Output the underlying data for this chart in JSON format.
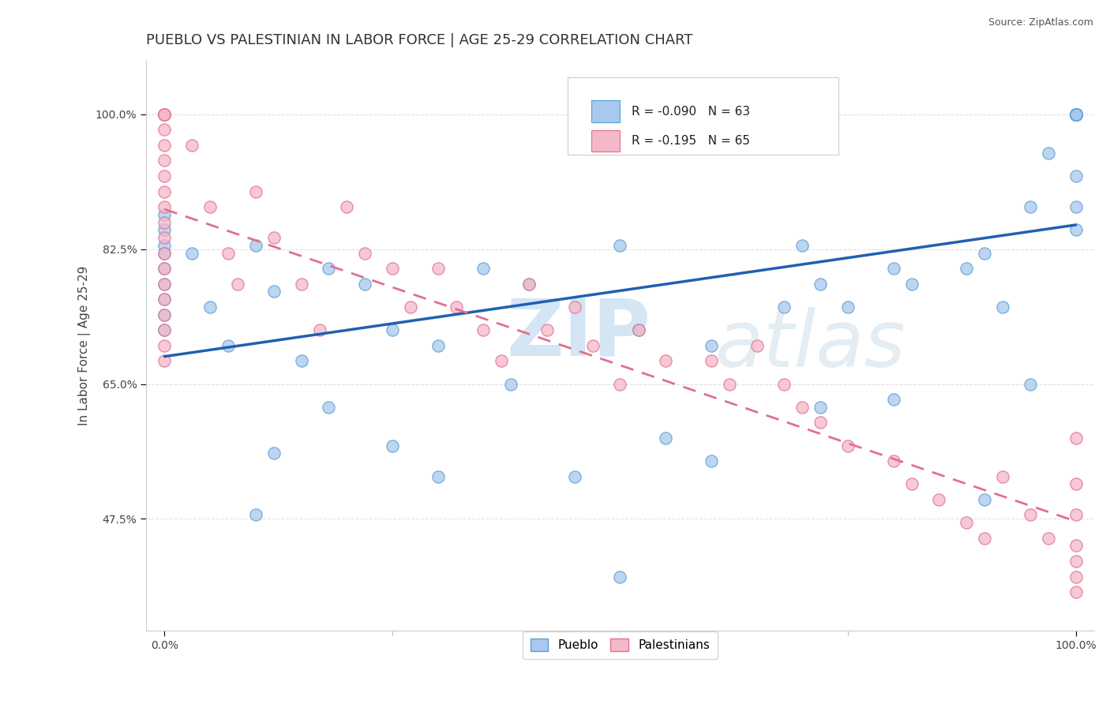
{
  "title": "PUEBLO VS PALESTINIAN IN LABOR FORCE | AGE 25-29 CORRELATION CHART",
  "source": "Source: ZipAtlas.com",
  "ylabel": "In Labor Force | Age 25-29",
  "xlim": [
    -0.02,
    1.02
  ],
  "ylim": [
    0.33,
    1.07
  ],
  "yticks": [
    0.475,
    0.65,
    0.825,
    1.0
  ],
  "ytick_labels": [
    "47.5%",
    "65.0%",
    "82.5%",
    "100.0%"
  ],
  "xtick_labels": [
    "0.0%",
    "100.0%"
  ],
  "xtick_pos": [
    0.0,
    1.0
  ],
  "pueblo_R": -0.09,
  "pueblo_N": 63,
  "palestinians_R": -0.195,
  "palestinians_N": 65,
  "pueblo_color": "#a8c8ee",
  "pueblo_edge_color": "#5a9fd4",
  "palestinians_color": "#f5b8c8",
  "palestinians_edge_color": "#e07090",
  "pueblo_line_color": "#2060b0",
  "palestinians_line_color": "#e07090",
  "background_color": "#ffffff",
  "watermark": "ZIPatlas",
  "watermark_color_zip": "#b0cce8",
  "watermark_color_atlas": "#c8d8e8",
  "legend_label_pueblo": "Pueblo",
  "legend_label_palestinians": "Palestinians",
  "title_fontsize": 13,
  "axis_label_fontsize": 11,
  "tick_fontsize": 10,
  "pueblo_x": [
    0.0,
    0.0,
    0.0,
    0.0,
    0.0,
    0.0,
    0.0,
    0.0,
    0.0,
    0.03,
    0.05,
    0.07,
    0.1,
    0.12,
    0.15,
    0.18,
    0.22,
    0.25,
    0.3,
    0.35,
    0.4,
    0.5,
    0.52,
    0.55,
    0.6,
    0.68,
    0.7,
    0.72,
    0.75,
    0.8,
    0.82,
    0.88,
    0.9,
    0.92,
    0.95,
    0.97,
    1.0,
    1.0,
    1.0,
    1.0,
    1.0,
    1.0,
    1.0,
    1.0,
    1.0,
    1.0,
    1.0,
    1.0,
    1.0,
    1.0,
    0.12,
    0.18,
    0.1,
    0.25,
    0.3,
    0.38,
    0.45,
    0.5,
    0.6,
    0.72,
    0.8,
    0.9,
    0.95
  ],
  "pueblo_y": [
    0.87,
    0.85,
    0.83,
    0.82,
    0.8,
    0.78,
    0.76,
    0.74,
    0.72,
    0.82,
    0.75,
    0.7,
    0.83,
    0.77,
    0.68,
    0.8,
    0.78,
    0.72,
    0.7,
    0.8,
    0.78,
    0.83,
    0.72,
    0.58,
    0.7,
    0.75,
    0.83,
    0.78,
    0.75,
    0.8,
    0.78,
    0.8,
    0.82,
    0.75,
    0.88,
    0.95,
    1.0,
    1.0,
    1.0,
    1.0,
    1.0,
    1.0,
    1.0,
    1.0,
    1.0,
    1.0,
    1.0,
    0.92,
    0.88,
    0.85,
    0.56,
    0.62,
    0.48,
    0.57,
    0.53,
    0.65,
    0.53,
    0.4,
    0.55,
    0.62,
    0.63,
    0.5,
    0.65
  ],
  "palestinians_x": [
    0.0,
    0.0,
    0.0,
    0.0,
    0.0,
    0.0,
    0.0,
    0.0,
    0.0,
    0.0,
    0.0,
    0.0,
    0.0,
    0.0,
    0.0,
    0.0,
    0.0,
    0.0,
    0.0,
    0.0,
    0.03,
    0.05,
    0.07,
    0.08,
    0.1,
    0.12,
    0.15,
    0.17,
    0.2,
    0.22,
    0.25,
    0.27,
    0.3,
    0.32,
    0.35,
    0.37,
    0.4,
    0.42,
    0.45,
    0.47,
    0.5,
    0.52,
    0.55,
    0.6,
    0.62,
    0.65,
    0.68,
    0.7,
    0.72,
    0.75,
    0.8,
    0.82,
    0.85,
    0.88,
    0.9,
    0.92,
    0.95,
    0.97,
    1.0,
    1.0,
    1.0,
    1.0,
    1.0,
    1.0,
    1.0
  ],
  "palestinians_y": [
    1.0,
    1.0,
    1.0,
    1.0,
    0.98,
    0.96,
    0.94,
    0.92,
    0.9,
    0.88,
    0.86,
    0.84,
    0.82,
    0.8,
    0.78,
    0.76,
    0.74,
    0.72,
    0.7,
    0.68,
    0.96,
    0.88,
    0.82,
    0.78,
    0.9,
    0.84,
    0.78,
    0.72,
    0.88,
    0.82,
    0.8,
    0.75,
    0.8,
    0.75,
    0.72,
    0.68,
    0.78,
    0.72,
    0.75,
    0.7,
    0.65,
    0.72,
    0.68,
    0.68,
    0.65,
    0.7,
    0.65,
    0.62,
    0.6,
    0.57,
    0.55,
    0.52,
    0.5,
    0.47,
    0.45,
    0.53,
    0.48,
    0.45,
    0.58,
    0.52,
    0.48,
    0.44,
    0.42,
    0.4,
    0.38
  ]
}
